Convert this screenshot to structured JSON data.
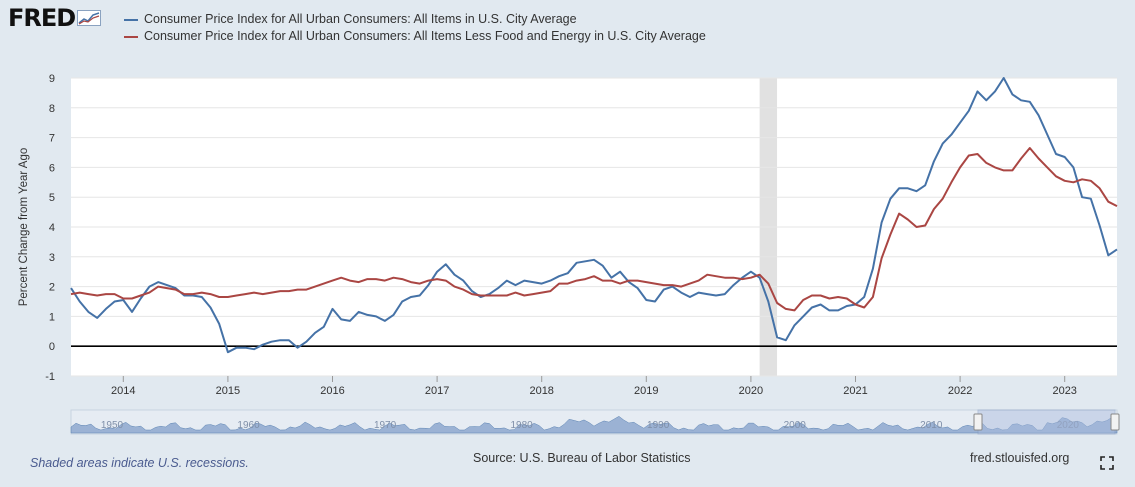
{
  "logo": {
    "text": "FRED"
  },
  "footer": {
    "recession_note": "Shaded areas indicate U.S. recessions.",
    "source": "Source: U.S. Bureau of Labor Statistics",
    "url": "fred.stlouisfed.org"
  },
  "navigator": {
    "labels": [
      "1950",
      "1960",
      "1970",
      "1980",
      "1990",
      "2000",
      "2010",
      "2020"
    ]
  },
  "colors": {
    "background": "#e1e9f0",
    "plot": "#ffffff",
    "recession": "#e1e1e1",
    "series1": "#4572a7",
    "series2": "#aa4643"
  },
  "chart_data": {
    "type": "line",
    "title": "",
    "xlabel": "",
    "ylabel": "Percent Change from Year Ago",
    "ylim": [
      -1,
      9
    ],
    "xlim": [
      "2013-07",
      "2023-07"
    ],
    "yticks": [
      -1,
      0,
      1,
      2,
      3,
      4,
      5,
      6,
      7,
      8,
      9
    ],
    "xticks": [
      "2014",
      "2015",
      "2016",
      "2017",
      "2018",
      "2019",
      "2020",
      "2021",
      "2022",
      "2023"
    ],
    "grid": true,
    "legend": "top-left",
    "recessions": [
      {
        "start": "2020-02",
        "end": "2020-04"
      }
    ],
    "series": [
      {
        "name": "Consumer Price Index for All Urban Consumers: All Items in U.S. City Average",
        "color": "#4572a7",
        "points": [
          [
            "2013-07",
            1.95
          ],
          [
            "2013-08",
            1.5
          ],
          [
            "2013-09",
            1.15
          ],
          [
            "2013-10",
            0.95
          ],
          [
            "2013-11",
            1.25
          ],
          [
            "2013-12",
            1.5
          ],
          [
            "2014-01",
            1.55
          ],
          [
            "2014-02",
            1.15
          ],
          [
            "2014-03",
            1.6
          ],
          [
            "2014-04",
            2.0
          ],
          [
            "2014-05",
            2.15
          ],
          [
            "2014-06",
            2.05
          ],
          [
            "2014-07",
            1.95
          ],
          [
            "2014-08",
            1.7
          ],
          [
            "2014-09",
            1.7
          ],
          [
            "2014-10",
            1.65
          ],
          [
            "2014-11",
            1.3
          ],
          [
            "2014-12",
            0.75
          ],
          [
            "2015-01",
            -0.2
          ],
          [
            "2015-02",
            -0.05
          ],
          [
            "2015-03",
            -0.05
          ],
          [
            "2015-04",
            -0.1
          ],
          [
            "2015-05",
            0.05
          ],
          [
            "2015-06",
            0.15
          ],
          [
            "2015-07",
            0.2
          ],
          [
            "2015-08",
            0.2
          ],
          [
            "2015-09",
            -0.05
          ],
          [
            "2015-10",
            0.15
          ],
          [
            "2015-11",
            0.45
          ],
          [
            "2015-12",
            0.65
          ],
          [
            "2016-01",
            1.25
          ],
          [
            "2016-02",
            0.9
          ],
          [
            "2016-03",
            0.85
          ],
          [
            "2016-04",
            1.15
          ],
          [
            "2016-05",
            1.05
          ],
          [
            "2016-06",
            1.0
          ],
          [
            "2016-07",
            0.85
          ],
          [
            "2016-08",
            1.05
          ],
          [
            "2016-09",
            1.5
          ],
          [
            "2016-10",
            1.65
          ],
          [
            "2016-11",
            1.7
          ],
          [
            "2016-12",
            2.05
          ],
          [
            "2017-01",
            2.5
          ],
          [
            "2017-02",
            2.75
          ],
          [
            "2017-03",
            2.4
          ],
          [
            "2017-04",
            2.2
          ],
          [
            "2017-05",
            1.85
          ],
          [
            "2017-06",
            1.65
          ],
          [
            "2017-07",
            1.75
          ],
          [
            "2017-08",
            1.95
          ],
          [
            "2017-09",
            2.2
          ],
          [
            "2017-10",
            2.05
          ],
          [
            "2017-11",
            2.2
          ],
          [
            "2017-12",
            2.15
          ],
          [
            "2018-01",
            2.1
          ],
          [
            "2018-02",
            2.2
          ],
          [
            "2018-03",
            2.35
          ],
          [
            "2018-04",
            2.45
          ],
          [
            "2018-05",
            2.8
          ],
          [
            "2018-06",
            2.85
          ],
          [
            "2018-07",
            2.9
          ],
          [
            "2018-08",
            2.7
          ],
          [
            "2018-09",
            2.3
          ],
          [
            "2018-10",
            2.5
          ],
          [
            "2018-11",
            2.15
          ],
          [
            "2018-12",
            1.95
          ],
          [
            "2019-01",
            1.55
          ],
          [
            "2019-02",
            1.5
          ],
          [
            "2019-03",
            1.9
          ],
          [
            "2019-04",
            2.0
          ],
          [
            "2019-05",
            1.8
          ],
          [
            "2019-06",
            1.65
          ],
          [
            "2019-07",
            1.8
          ],
          [
            "2019-08",
            1.75
          ],
          [
            "2019-09",
            1.7
          ],
          [
            "2019-10",
            1.75
          ],
          [
            "2019-11",
            2.05
          ],
          [
            "2019-12",
            2.3
          ],
          [
            "2020-01",
            2.5
          ],
          [
            "2020-02",
            2.3
          ],
          [
            "2020-03",
            1.5
          ],
          [
            "2020-04",
            0.3
          ],
          [
            "2020-05",
            0.2
          ],
          [
            "2020-06",
            0.7
          ],
          [
            "2020-07",
            1.0
          ],
          [
            "2020-08",
            1.3
          ],
          [
            "2020-09",
            1.4
          ],
          [
            "2020-10",
            1.2
          ],
          [
            "2020-11",
            1.2
          ],
          [
            "2020-12",
            1.35
          ],
          [
            "2021-01",
            1.4
          ],
          [
            "2021-02",
            1.65
          ],
          [
            "2021-03",
            2.6
          ],
          [
            "2021-04",
            4.15
          ],
          [
            "2021-05",
            4.95
          ],
          [
            "2021-06",
            5.3
          ],
          [
            "2021-07",
            5.3
          ],
          [
            "2021-08",
            5.2
          ],
          [
            "2021-09",
            5.4
          ],
          [
            "2021-10",
            6.2
          ],
          [
            "2021-11",
            6.8
          ],
          [
            "2021-12",
            7.1
          ],
          [
            "2022-01",
            7.5
          ],
          [
            "2022-02",
            7.9
          ],
          [
            "2022-03",
            8.55
          ],
          [
            "2022-04",
            8.25
          ],
          [
            "2022-05",
            8.55
          ],
          [
            "2022-06",
            9.0
          ],
          [
            "2022-07",
            8.45
          ],
          [
            "2022-08",
            8.25
          ],
          [
            "2022-09",
            8.2
          ],
          [
            "2022-10",
            7.75
          ],
          [
            "2022-11",
            7.1
          ],
          [
            "2022-12",
            6.45
          ],
          [
            "2023-01",
            6.35
          ],
          [
            "2023-02",
            6.0
          ],
          [
            "2023-03",
            5.0
          ],
          [
            "2023-04",
            4.95
          ],
          [
            "2023-05",
            4.05
          ],
          [
            "2023-06",
            3.05
          ],
          [
            "2023-07",
            3.25
          ]
        ]
      },
      {
        "name": "Consumer Price Index for All Urban Consumers: All Items Less Food and Energy in U.S. City Average",
        "color": "#aa4643",
        "points": [
          [
            "2013-07",
            1.75
          ],
          [
            "2013-08",
            1.8
          ],
          [
            "2013-09",
            1.75
          ],
          [
            "2013-10",
            1.7
          ],
          [
            "2013-11",
            1.75
          ],
          [
            "2013-12",
            1.75
          ],
          [
            "2014-01",
            1.6
          ],
          [
            "2014-02",
            1.6
          ],
          [
            "2014-03",
            1.7
          ],
          [
            "2014-04",
            1.8
          ],
          [
            "2014-05",
            2.0
          ],
          [
            "2014-06",
            1.95
          ],
          [
            "2014-07",
            1.9
          ],
          [
            "2014-08",
            1.75
          ],
          [
            "2014-09",
            1.75
          ],
          [
            "2014-10",
            1.8
          ],
          [
            "2014-11",
            1.75
          ],
          [
            "2014-12",
            1.65
          ],
          [
            "2015-01",
            1.65
          ],
          [
            "2015-02",
            1.7
          ],
          [
            "2015-03",
            1.75
          ],
          [
            "2015-04",
            1.8
          ],
          [
            "2015-05",
            1.75
          ],
          [
            "2015-06",
            1.8
          ],
          [
            "2015-07",
            1.85
          ],
          [
            "2015-08",
            1.85
          ],
          [
            "2015-09",
            1.9
          ],
          [
            "2015-10",
            1.9
          ],
          [
            "2015-11",
            2.0
          ],
          [
            "2015-12",
            2.1
          ],
          [
            "2016-01",
            2.2
          ],
          [
            "2016-02",
            2.3
          ],
          [
            "2016-03",
            2.2
          ],
          [
            "2016-04",
            2.15
          ],
          [
            "2016-05",
            2.25
          ],
          [
            "2016-06",
            2.25
          ],
          [
            "2016-07",
            2.2
          ],
          [
            "2016-08",
            2.3
          ],
          [
            "2016-09",
            2.25
          ],
          [
            "2016-10",
            2.15
          ],
          [
            "2016-11",
            2.1
          ],
          [
            "2016-12",
            2.2
          ],
          [
            "2017-01",
            2.25
          ],
          [
            "2017-02",
            2.2
          ],
          [
            "2017-03",
            2.0
          ],
          [
            "2017-04",
            1.9
          ],
          [
            "2017-05",
            1.75
          ],
          [
            "2017-06",
            1.7
          ],
          [
            "2017-07",
            1.7
          ],
          [
            "2017-08",
            1.7
          ],
          [
            "2017-09",
            1.7
          ],
          [
            "2017-10",
            1.8
          ],
          [
            "2017-11",
            1.7
          ],
          [
            "2017-12",
            1.75
          ],
          [
            "2018-01",
            1.8
          ],
          [
            "2018-02",
            1.85
          ],
          [
            "2018-03",
            2.1
          ],
          [
            "2018-04",
            2.1
          ],
          [
            "2018-05",
            2.2
          ],
          [
            "2018-06",
            2.25
          ],
          [
            "2018-07",
            2.35
          ],
          [
            "2018-08",
            2.2
          ],
          [
            "2018-09",
            2.2
          ],
          [
            "2018-10",
            2.1
          ],
          [
            "2018-11",
            2.2
          ],
          [
            "2018-12",
            2.2
          ],
          [
            "2019-01",
            2.15
          ],
          [
            "2019-02",
            2.1
          ],
          [
            "2019-03",
            2.05
          ],
          [
            "2019-04",
            2.05
          ],
          [
            "2019-05",
            2.0
          ],
          [
            "2019-06",
            2.1
          ],
          [
            "2019-07",
            2.2
          ],
          [
            "2019-08",
            2.4
          ],
          [
            "2019-09",
            2.35
          ],
          [
            "2019-10",
            2.3
          ],
          [
            "2019-11",
            2.3
          ],
          [
            "2019-12",
            2.25
          ],
          [
            "2020-01",
            2.3
          ],
          [
            "2020-02",
            2.4
          ],
          [
            "2020-03",
            2.1
          ],
          [
            "2020-04",
            1.45
          ],
          [
            "2020-05",
            1.25
          ],
          [
            "2020-06",
            1.2
          ],
          [
            "2020-07",
            1.55
          ],
          [
            "2020-08",
            1.7
          ],
          [
            "2020-09",
            1.7
          ],
          [
            "2020-10",
            1.6
          ],
          [
            "2020-11",
            1.65
          ],
          [
            "2020-12",
            1.6
          ],
          [
            "2021-01",
            1.4
          ],
          [
            "2021-02",
            1.3
          ],
          [
            "2021-03",
            1.65
          ],
          [
            "2021-04",
            2.95
          ],
          [
            "2021-05",
            3.75
          ],
          [
            "2021-06",
            4.45
          ],
          [
            "2021-07",
            4.25
          ],
          [
            "2021-08",
            4.0
          ],
          [
            "2021-09",
            4.05
          ],
          [
            "2021-10",
            4.6
          ],
          [
            "2021-11",
            4.95
          ],
          [
            "2021-12",
            5.5
          ],
          [
            "2022-01",
            6.0
          ],
          [
            "2022-02",
            6.4
          ],
          [
            "2022-03",
            6.45
          ],
          [
            "2022-04",
            6.15
          ],
          [
            "2022-05",
            6.0
          ],
          [
            "2022-06",
            5.9
          ],
          [
            "2022-07",
            5.9
          ],
          [
            "2022-08",
            6.3
          ],
          [
            "2022-09",
            6.65
          ],
          [
            "2022-10",
            6.3
          ],
          [
            "2022-11",
            6.0
          ],
          [
            "2022-12",
            5.7
          ],
          [
            "2023-01",
            5.55
          ],
          [
            "2023-02",
            5.5
          ],
          [
            "2023-03",
            5.6
          ],
          [
            "2023-04",
            5.55
          ],
          [
            "2023-05",
            5.3
          ],
          [
            "2023-06",
            4.85
          ],
          [
            "2023-07",
            4.7
          ]
        ]
      }
    ]
  }
}
